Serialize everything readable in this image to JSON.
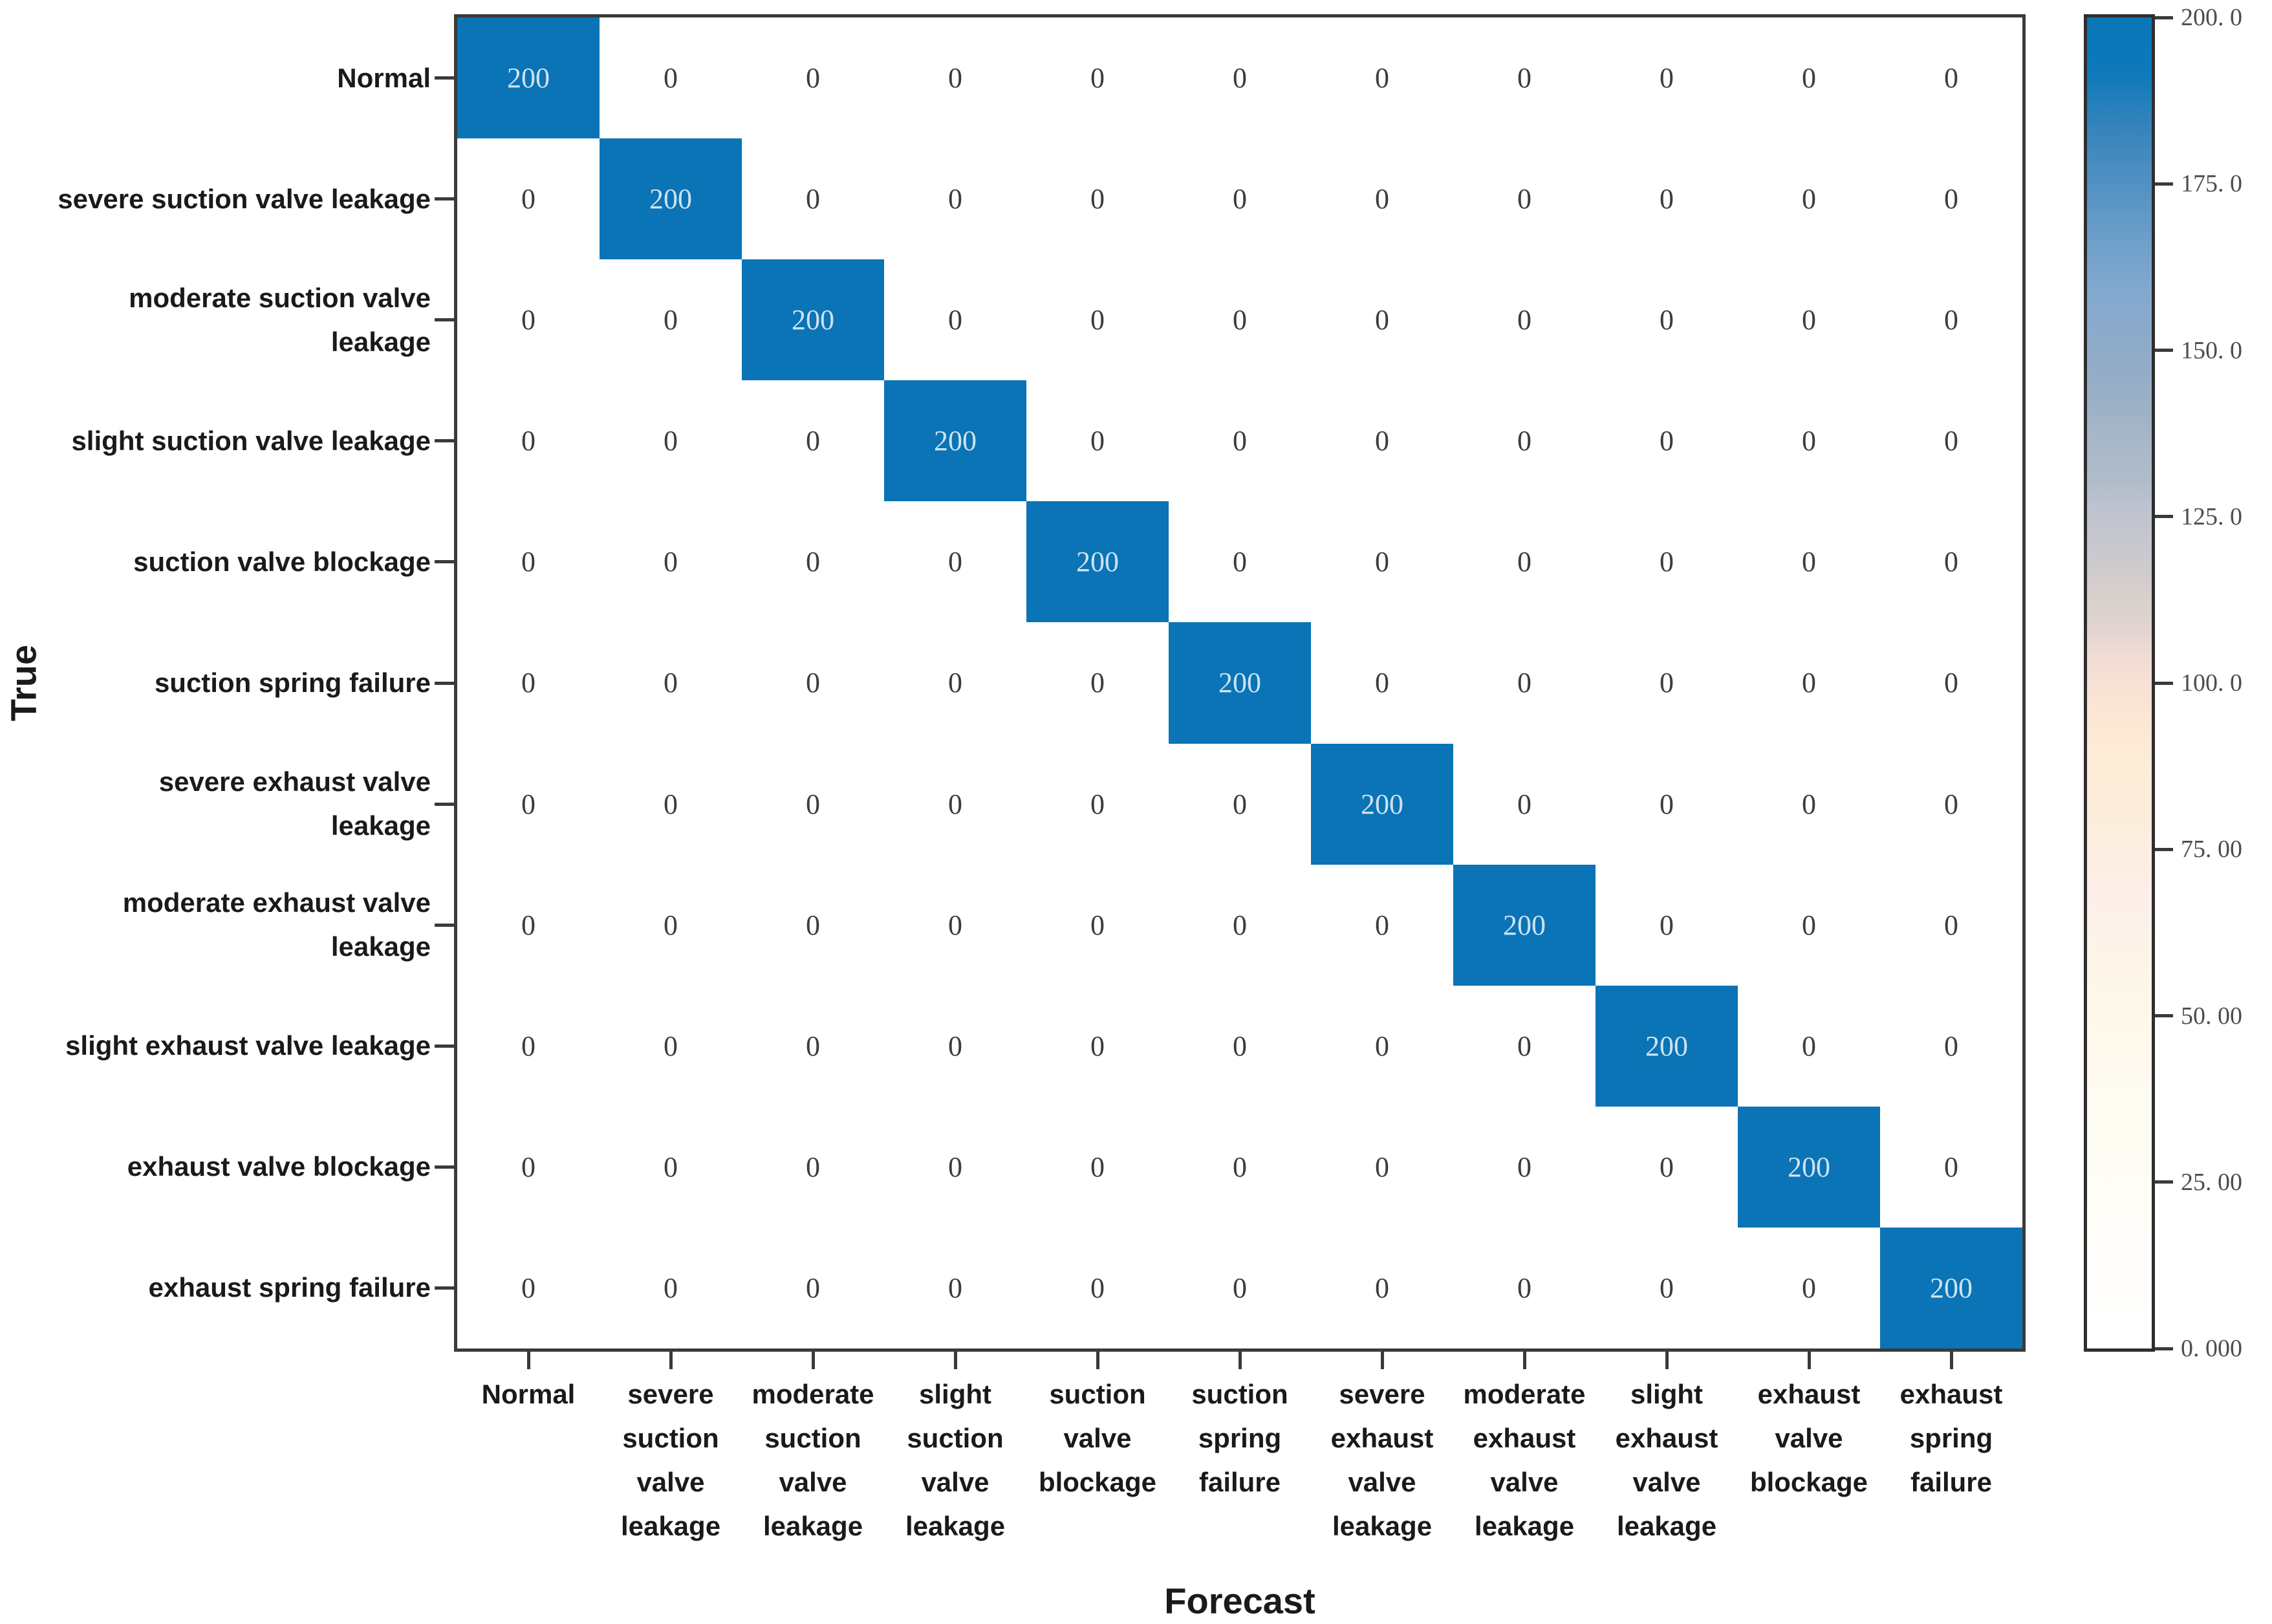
{
  "colors": {
    "diagonal_cell": "#0a74b6",
    "off_diagonal_cell": "#ffffff",
    "diagonal_text": "#cfe2f0",
    "zero_text": "#3c3c3c",
    "axis_border": "#3a3a3a",
    "colorbar_top": "#0a76b8",
    "colorbar_mid_warm": "#fae6d3",
    "colorbar_bottom": "#ffffff"
  },
  "chart_data": {
    "type": "heatmap",
    "xlabel": "Forecast",
    "ylabel": "True",
    "categories": [
      "Normal",
      "severe suction valve leakage",
      "moderate suction valve leakage",
      "slight suction valve leakage",
      "suction valve blockage",
      "suction spring failure",
      "severe exhaust valve leakage",
      "moderate exhaust valve leakage",
      "slight exhaust valve leakage",
      "exhaust valve blockage",
      "exhaust spring failure"
    ],
    "matrix": [
      [
        200,
        0,
        0,
        0,
        0,
        0,
        0,
        0,
        0,
        0,
        0
      ],
      [
        0,
        200,
        0,
        0,
        0,
        0,
        0,
        0,
        0,
        0,
        0
      ],
      [
        0,
        0,
        200,
        0,
        0,
        0,
        0,
        0,
        0,
        0,
        0
      ],
      [
        0,
        0,
        0,
        200,
        0,
        0,
        0,
        0,
        0,
        0,
        0
      ],
      [
        0,
        0,
        0,
        0,
        200,
        0,
        0,
        0,
        0,
        0,
        0
      ],
      [
        0,
        0,
        0,
        0,
        0,
        200,
        0,
        0,
        0,
        0,
        0
      ],
      [
        0,
        0,
        0,
        0,
        0,
        0,
        200,
        0,
        0,
        0,
        0
      ],
      [
        0,
        0,
        0,
        0,
        0,
        0,
        0,
        200,
        0,
        0,
        0
      ],
      [
        0,
        0,
        0,
        0,
        0,
        0,
        0,
        0,
        200,
        0,
        0
      ],
      [
        0,
        0,
        0,
        0,
        0,
        0,
        0,
        0,
        0,
        200,
        0
      ],
      [
        0,
        0,
        0,
        0,
        0,
        0,
        0,
        0,
        0,
        0,
        200
      ]
    ],
    "y_tick_label_lines": [
      [
        "Normal"
      ],
      [
        "severe suction valve leakage"
      ],
      [
        "moderate suction valve",
        "leakage"
      ],
      [
        "slight suction valve leakage"
      ],
      [
        "suction valve blockage"
      ],
      [
        "suction spring failure"
      ],
      [
        "severe exhaust valve",
        "leakage"
      ],
      [
        "moderate exhaust valve",
        "leakage"
      ],
      [
        "slight exhaust valve leakage"
      ],
      [
        "exhaust valve blockage"
      ],
      [
        "exhaust spring failure"
      ]
    ],
    "x_tick_label_lines": [
      [
        "Normal"
      ],
      [
        "severe",
        "suction",
        "valve",
        "leakage"
      ],
      [
        "moderate",
        "suction",
        "valve",
        "leakage"
      ],
      [
        "slight",
        "suction",
        "valve",
        "leakage"
      ],
      [
        "suction",
        "valve",
        "blockage"
      ],
      [
        "suction",
        "spring",
        "failure"
      ],
      [
        "severe",
        "exhaust",
        "valve",
        "leakage"
      ],
      [
        "moderate",
        "exhaust",
        "valve",
        "leakage"
      ],
      [
        "slight",
        "exhaust",
        "valve",
        "leakage"
      ],
      [
        "exhaust",
        "valve",
        "blockage"
      ],
      [
        "exhaust",
        "spring",
        "failure"
      ]
    ],
    "colorbar": {
      "min": 0,
      "max": 200,
      "ticks": [
        0,
        25,
        50,
        75,
        100,
        125,
        150,
        175,
        200
      ],
      "tick_labels": [
        "0. 000",
        "25. 00",
        "50. 00",
        "75. 00",
        "100. 0",
        "125. 0",
        "150. 0",
        "175. 0",
        "200. 0"
      ],
      "legend_position": "right"
    },
    "grid": false,
    "xlim_categories": 11,
    "ylim_categories": 11
  }
}
